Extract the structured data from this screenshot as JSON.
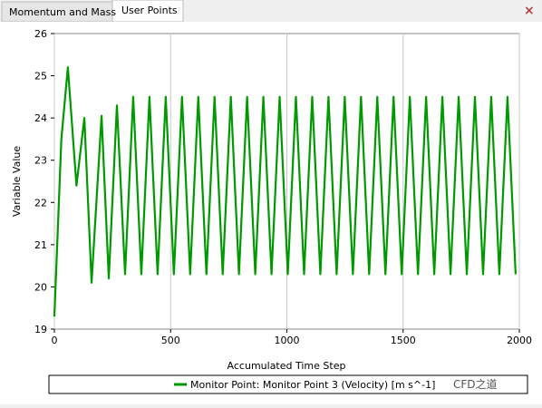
{
  "tabs": [
    "Momentum and Mass",
    "User Points"
  ],
  "watermark": "CFD之道",
  "chart_data": {
    "type": "line",
    "xlabel": "Accumulated Time Step",
    "ylabel": "Variable Value",
    "x": [
      0,
      30,
      58,
      95,
      129,
      160,
      203,
      234,
      269,
      304,
      339,
      374,
      409,
      444,
      479,
      514,
      549,
      584,
      619,
      654,
      689,
      724,
      759,
      794,
      829,
      864,
      899,
      934,
      969,
      1004,
      1039,
      1074,
      1109,
      1144,
      1179,
      1214,
      1249,
      1284,
      1319,
      1354,
      1389,
      1424,
      1459,
      1494,
      1529,
      1564,
      1599,
      1634,
      1669,
      1704,
      1739,
      1774,
      1809,
      1844,
      1879,
      1914,
      1949,
      1984
    ],
    "series": [
      {
        "name": "Monitor Point: Monitor Point 3 (Velocity) [m s^-1]",
        "color": "#009900",
        "values": [
          19.3,
          23.5,
          25.2,
          22.4,
          24.0,
          20.1,
          24.05,
          20.2,
          24.3,
          20.3,
          24.5,
          20.3,
          24.5,
          20.3,
          24.5,
          20.3,
          24.5,
          20.3,
          24.5,
          20.3,
          24.5,
          20.3,
          24.5,
          20.3,
          24.5,
          20.3,
          24.5,
          20.3,
          24.5,
          20.3,
          24.5,
          20.3,
          24.5,
          20.3,
          24.5,
          20.3,
          24.5,
          20.3,
          24.5,
          20.3,
          24.5,
          20.3,
          24.5,
          20.3,
          24.5,
          20.3,
          24.5,
          20.3,
          24.5,
          20.3,
          24.5,
          20.3,
          24.5,
          20.3,
          24.5,
          20.3,
          24.5,
          20.3
        ]
      }
    ],
    "xlim": [
      0,
      2000
    ],
    "xticks": [
      0,
      500,
      1000,
      1500,
      2000
    ],
    "ylim": [
      19,
      26
    ],
    "yticks": [
      19,
      20,
      21,
      22,
      23,
      24,
      25,
      26
    ],
    "grid": "x"
  }
}
